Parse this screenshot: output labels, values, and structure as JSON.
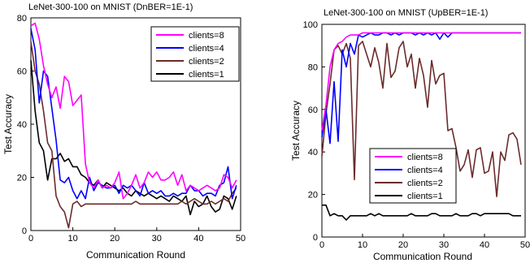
{
  "chart_data": [
    {
      "type": "line",
      "title": "LeNet-300-100 on MNIST (DnBER=1E-1)",
      "xlabel": "Communication  Round",
      "ylabel": "Test  Accuracy",
      "xlim": [
        0,
        50
      ],
      "ylim": [
        0,
        80
      ],
      "xticks": [
        0,
        10,
        20,
        30,
        40,
        50
      ],
      "yticks": [
        0,
        20,
        40,
        60,
        80
      ],
      "grid": false,
      "legend_position": "top-right",
      "series": [
        {
          "name": "clients=8",
          "color": "#ff00ff",
          "x": [
            0,
            1,
            2,
            3,
            4,
            5,
            6,
            7,
            8,
            9,
            10,
            11,
            12,
            13,
            14,
            15,
            16,
            17,
            18,
            19,
            20,
            21,
            22,
            23,
            24,
            25,
            26,
            27,
            28,
            29,
            30,
            31,
            32,
            33,
            34,
            35,
            36,
            37,
            38,
            39,
            40,
            41,
            42,
            43,
            44,
            45,
            46,
            47,
            48,
            49
          ],
          "y": [
            77,
            78,
            72,
            62,
            55,
            50,
            54,
            46,
            58,
            56,
            47,
            49,
            51,
            25,
            18,
            16,
            19,
            16,
            17,
            16,
            18,
            22,
            12,
            14,
            17,
            21,
            16,
            18,
            22,
            20,
            22,
            19,
            19,
            20,
            22,
            17,
            21,
            15,
            17,
            16,
            15,
            16,
            17,
            16,
            15,
            16,
            21,
            20,
            16,
            19
          ]
        },
        {
          "name": "clients=4",
          "color": "#0000ff",
          "x": [
            0,
            1,
            2,
            3,
            4,
            5,
            6,
            7,
            8,
            9,
            10,
            11,
            12,
            13,
            14,
            15,
            16,
            17,
            18,
            19,
            20,
            21,
            22,
            23,
            24,
            25,
            26,
            27,
            28,
            29,
            30,
            31,
            32,
            33,
            34,
            35,
            36,
            37,
            38,
            39,
            40,
            41,
            42,
            43,
            44,
            45,
            46,
            47,
            48,
            49
          ],
          "y": [
            76,
            68,
            48,
            60,
            58,
            46,
            34,
            19,
            18,
            20,
            15,
            12,
            15,
            12,
            20,
            15,
            18,
            17,
            16,
            16,
            17,
            14,
            17,
            16,
            17,
            15,
            13,
            18,
            14,
            15,
            14,
            15,
            13,
            13,
            14,
            13,
            14,
            14,
            17,
            15,
            15,
            13,
            14,
            14,
            13,
            17,
            18,
            24,
            12,
            17
          ]
        },
        {
          "name": "clients=2",
          "color": "#6b2b2b",
          "x": [
            0,
            1,
            2,
            3,
            4,
            5,
            6,
            7,
            8,
            9,
            10,
            11,
            12,
            13,
            14,
            15,
            16,
            17,
            18,
            19,
            20,
            21,
            22,
            23,
            24,
            25,
            26,
            27,
            28,
            29,
            30,
            31,
            32,
            33,
            34,
            35,
            36,
            37,
            38,
            39,
            40,
            41,
            42,
            43,
            44,
            45,
            46,
            47,
            48,
            49
          ],
          "y": [
            71,
            60,
            55,
            45,
            33,
            30,
            13,
            9,
            7,
            1,
            10,
            11,
            9,
            10,
            10,
            10,
            10,
            10,
            10,
            10,
            10,
            10,
            10,
            10,
            10,
            11,
            10,
            10,
            10,
            10,
            10,
            10,
            10,
            10,
            10,
            10,
            11,
            10,
            11,
            12,
            11,
            10,
            10,
            11,
            10,
            11,
            12,
            11,
            14,
            16
          ]
        },
        {
          "name": "clients=1",
          "color": "#000000",
          "x": [
            0,
            1,
            2,
            3,
            4,
            5,
            6,
            7,
            8,
            9,
            10,
            11,
            12,
            13,
            14,
            15,
            16,
            17,
            18,
            19,
            20,
            21,
            22,
            23,
            24,
            25,
            26,
            27,
            28,
            29,
            30,
            31,
            32,
            33,
            34,
            35,
            36,
            37,
            38,
            39,
            40,
            41,
            42,
            43,
            44,
            45,
            46,
            47,
            48,
            49
          ],
          "y": [
            64,
            45,
            33,
            30,
            19,
            27,
            27,
            29,
            26,
            27,
            24,
            24,
            21,
            20,
            18,
            17,
            19,
            16,
            18,
            17,
            16,
            15,
            16,
            14,
            13,
            15,
            14,
            13,
            14,
            13,
            12,
            13,
            12,
            11,
            13,
            12,
            11,
            13,
            6,
            11,
            9,
            10,
            13,
            9,
            7,
            8,
            13,
            12,
            8,
            13
          ]
        }
      ]
    },
    {
      "type": "line",
      "title": "LeNet-300-100 on MNIST (UpBER=1E-1)",
      "xlabel": "Communication  Round",
      "ylabel": "Test  Accuracy",
      "xlim": [
        0,
        50
      ],
      "ylim": [
        0,
        100
      ],
      "xticks": [
        0,
        10,
        20,
        30,
        40,
        50
      ],
      "yticks": [
        0,
        20,
        40,
        60,
        80,
        100
      ],
      "grid": false,
      "legend_position": "bottom-center",
      "series": [
        {
          "name": "clients=8",
          "color": "#ff00ff",
          "x": [
            0,
            1,
            2,
            3,
            4,
            5,
            6,
            7,
            8,
            9,
            10,
            11,
            12,
            13,
            14,
            15,
            16,
            17,
            18,
            19,
            20,
            21,
            22,
            23,
            24,
            25,
            26,
            27,
            28,
            29,
            30,
            31,
            32,
            33,
            34,
            35,
            36,
            37,
            38,
            39,
            40,
            41,
            42,
            43,
            44,
            45,
            46,
            47,
            48,
            49
          ],
          "y": [
            50,
            62,
            80,
            88,
            91,
            92,
            94,
            95,
            95,
            95,
            96,
            96,
            96,
            96,
            96,
            96,
            96,
            96,
            96,
            96,
            96,
            96,
            96,
            96,
            96,
            96,
            96,
            96,
            96,
            96,
            96,
            96,
            96,
            96,
            96,
            96,
            96,
            96,
            96,
            96,
            96,
            96,
            96,
            96,
            96,
            96,
            96,
            96,
            96,
            96
          ]
        },
        {
          "name": "clients=4",
          "color": "#0000ff",
          "x": [
            0,
            1,
            2,
            3,
            4,
            5,
            6,
            7,
            8,
            9,
            10,
            11,
            12,
            13,
            14,
            15,
            16,
            17,
            18,
            19,
            20,
            21,
            22,
            23,
            24,
            25,
            26,
            27,
            28,
            29,
            30,
            31,
            32,
            33,
            34,
            35,
            36,
            37,
            38,
            39,
            40,
            41,
            42,
            43,
            44,
            45,
            46,
            47,
            48,
            49
          ],
          "y": [
            47,
            60,
            44,
            73,
            45,
            88,
            80,
            91,
            86,
            95,
            94,
            95,
            96,
            95,
            95,
            96,
            96,
            95,
            96,
            95,
            96,
            96,
            96,
            95,
            96,
            95,
            96,
            95,
            96,
            93,
            96,
            94,
            96,
            96,
            96,
            96,
            96,
            96,
            96,
            96,
            96,
            96,
            96,
            96,
            96,
            96,
            96,
            96,
            96,
            96
          ]
        },
        {
          "name": "clients=2",
          "color": "#6b2b2b",
          "x": [
            0,
            1,
            2,
            3,
            4,
            5,
            6,
            7,
            8,
            9,
            10,
            11,
            12,
            13,
            14,
            15,
            16,
            17,
            18,
            19,
            20,
            21,
            22,
            23,
            24,
            25,
            26,
            27,
            28,
            29,
            30,
            31,
            32,
            33,
            34,
            35,
            36,
            37,
            38,
            39,
            40,
            41,
            42,
            43,
            44,
            45,
            46,
            47,
            48,
            49
          ],
          "y": [
            38,
            58,
            72,
            88,
            90,
            86,
            91,
            84,
            27,
            90,
            92,
            86,
            80,
            89,
            82,
            70,
            91,
            75,
            78,
            89,
            92,
            80,
            86,
            70,
            84,
            76,
            61,
            83,
            72,
            76,
            77,
            50,
            51,
            42,
            31,
            34,
            41,
            28,
            41,
            42,
            30,
            31,
            40,
            19,
            40,
            36,
            48,
            49,
            46,
            34
          ]
        },
        {
          "name": "clients=1",
          "color": "#000000",
          "x": [
            0,
            1,
            2,
            3,
            4,
            5,
            6,
            7,
            8,
            9,
            10,
            11,
            12,
            13,
            14,
            15,
            16,
            17,
            18,
            19,
            20,
            21,
            22,
            23,
            24,
            25,
            26,
            27,
            28,
            29,
            30,
            31,
            32,
            33,
            34,
            35,
            36,
            37,
            38,
            39,
            40,
            41,
            42,
            43,
            44,
            45,
            46,
            47,
            48,
            49
          ],
          "y": [
            15,
            15,
            10,
            11,
            10,
            10,
            8,
            10,
            10,
            10,
            10,
            10,
            11,
            10,
            11,
            10,
            10,
            10,
            10,
            10,
            10,
            10,
            11,
            10,
            10,
            10,
            10,
            11,
            11,
            10,
            10,
            10,
            10,
            11,
            10,
            10,
            10,
            11,
            11,
            10,
            11,
            11,
            11,
            11,
            11,
            11,
            11,
            10,
            10,
            10
          ]
        }
      ]
    }
  ]
}
